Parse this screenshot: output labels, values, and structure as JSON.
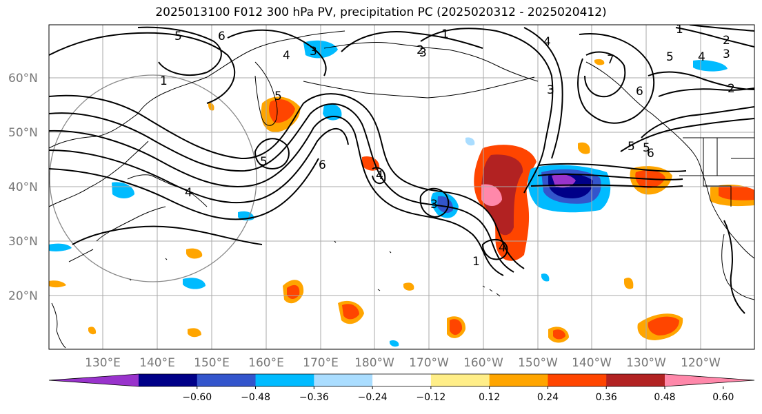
{
  "title": "2025013100 F012 300 hPa PV, precipitation PC (2025020312 - 2025020412)",
  "lat_labels": [
    "60°N",
    "50°N",
    "40°N",
    "30°N",
    "20°N"
  ],
  "lon_labels": [
    "130°E",
    "140°E",
    "150°E",
    "160°E",
    "170°E",
    "180°W",
    "170°W",
    "160°W",
    "150°W",
    "140°W",
    "130°W",
    "120°W"
  ],
  "colorbar": {
    "ticks": [
      "−0.60",
      "−0.48",
      "−0.36",
      "−0.24",
      "−0.12",
      "0.12",
      "0.24",
      "0.36",
      "0.48",
      "0.60"
    ],
    "colors": [
      "#9933cc",
      "#000088",
      "#3355cc",
      "#00bbff",
      "#aaddff",
      "#ffffff",
      "#ffee88",
      "#ffa500",
      "#ff4500",
      "#b22222",
      "#ff88aa"
    ]
  },
  "contour_labels": [
    "5",
    "6",
    "1",
    "4",
    "3",
    "2",
    "2",
    "1",
    "4",
    "3",
    "5",
    "7",
    "4",
    "5",
    "3",
    "6",
    "1",
    "3",
    "2",
    "5",
    "5",
    "6",
    "5",
    "6",
    "4",
    "4",
    "3",
    "1",
    "4"
  ]
}
